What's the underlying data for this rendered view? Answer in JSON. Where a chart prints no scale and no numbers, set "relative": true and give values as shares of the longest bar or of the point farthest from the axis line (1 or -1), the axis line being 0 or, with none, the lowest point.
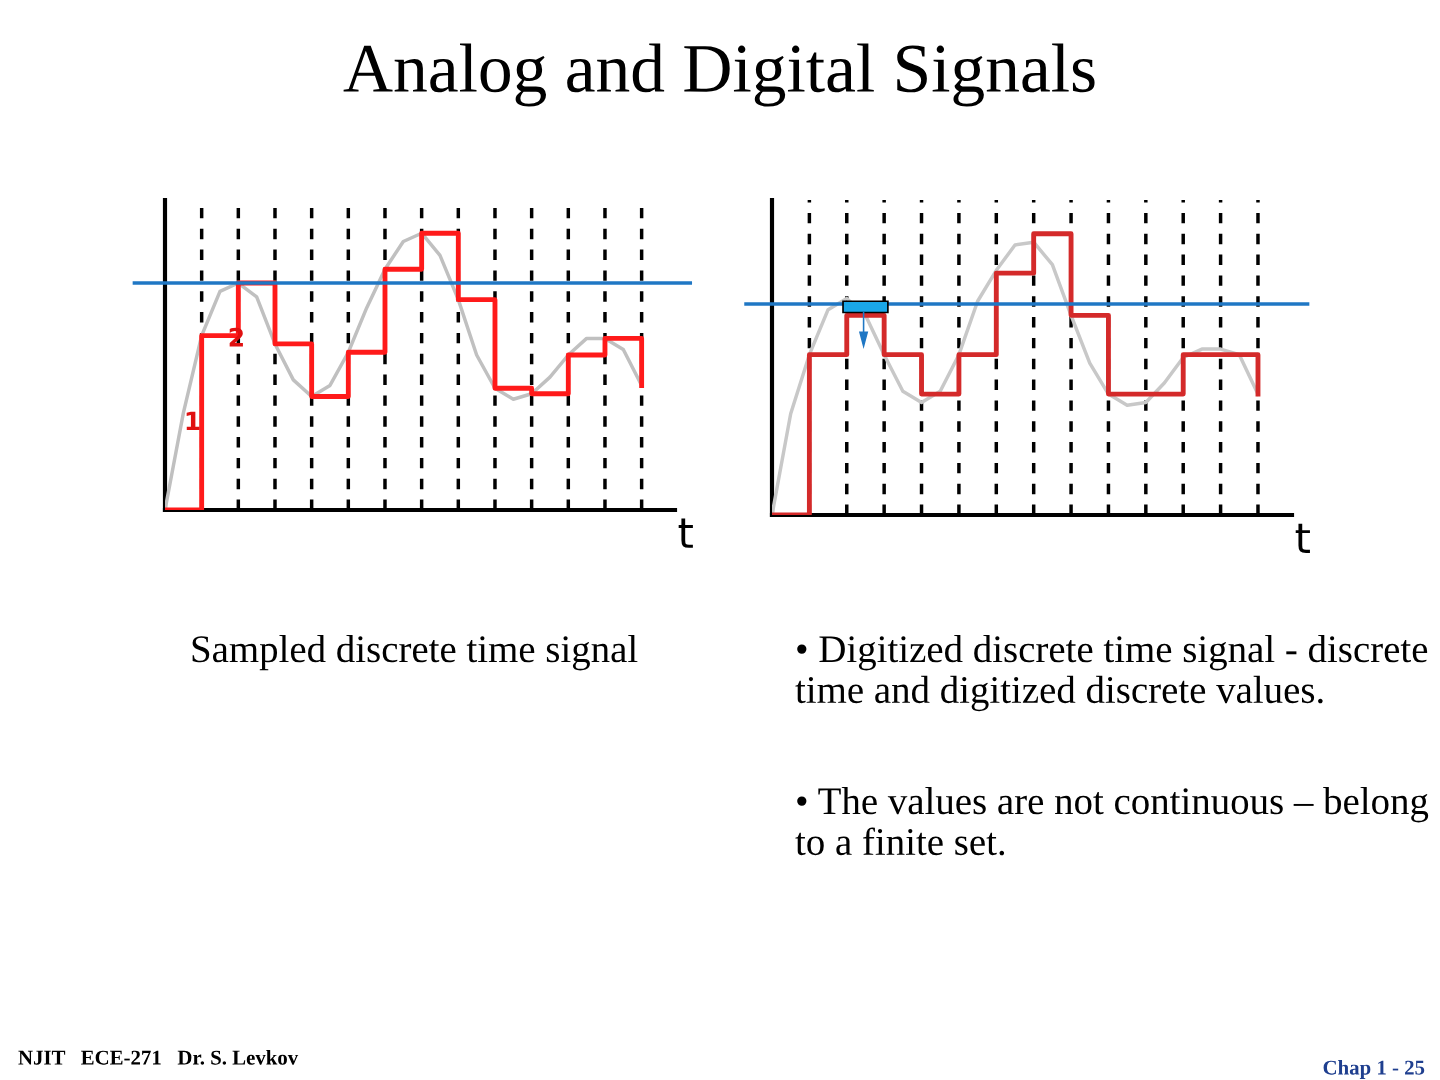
{
  "chart_data": [
    {
      "type": "step",
      "title": "Analog and Digital Signals",
      "relative": true,
      "xlabel": "t",
      "categories": [
        null,
        null,
        null,
        null,
        null,
        null,
        null,
        null,
        null,
        null,
        null,
        null,
        null,
        null,
        null,
        null,
        null,
        null,
        null,
        null,
        null,
        null,
        null,
        null,
        null,
        null,
        null
      ],
      "grid": "x",
      "line_style": "solid",
      "series": [
        {
          "type": "line",
          "color": "#c0c0c0",
          "values": [
            0,
            0.35,
            0.63,
            0.79,
            0.82,
            0.77,
            0.6,
            0.47,
            0.41,
            0.45,
            0.57,
            0.73,
            0.87,
            0.97,
            1,
            0.92,
            0.76,
            0.56,
            0.44,
            0.4,
            0.42,
            0.48,
            0.56,
            0.62,
            0.62,
            0.58,
            0.45
          ]
        },
        {
          "color": "#ff1a1a",
          "values": [
            0,
            0,
            0.63,
            0.63,
            0.82,
            0.82,
            0.6,
            0.6,
            0.41,
            0.41,
            0.57,
            0.57,
            0.87,
            0.87,
            1,
            1,
            0.76,
            0.76,
            0.44,
            0.44,
            0.42,
            0.42,
            0.56,
            0.56,
            0.62,
            0.62,
            0.45
          ]
        }
      ],
      "ref_lines": [
        {
          "axis": "y",
          "value": 0.82,
          "color": "#1f77c4"
        }
      ],
      "annotations": [
        "1",
        "2",
        "Sampled discrete time signal",
        "NJIT   ECE-271   Dr. S. Levkov"
      ]
    },
    {
      "type": "step",
      "relative": true,
      "xlabel": "t",
      "categories": [
        null,
        null,
        null,
        null,
        null,
        null,
        null,
        null,
        null,
        null,
        null,
        null,
        null,
        null,
        null,
        null,
        null,
        null,
        null,
        null,
        null,
        null,
        null,
        null,
        null,
        null,
        null
      ],
      "grid": "x",
      "line_style": "solid",
      "series": [
        {
          "type": "line",
          "color": "#c8c8c8",
          "values": [
            0,
            0.36,
            0.57,
            0.73,
            0.77,
            0.71,
            0.57,
            0.44,
            0.4,
            0.44,
            0.57,
            0.76,
            0.87,
            0.96,
            0.97,
            0.89,
            0.71,
            0.54,
            0.43,
            0.39,
            0.4,
            0.47,
            0.56,
            0.59,
            0.59,
            0.57,
            0.43
          ]
        },
        {
          "color": "#d42a2a",
          "values": [
            0,
            0,
            0.57,
            0.57,
            0.71,
            0.71,
            0.57,
            0.57,
            0.43,
            0.43,
            0.57,
            0.57,
            0.86,
            0.86,
            1,
            1,
            0.71,
            0.71,
            0.43,
            0.43,
            0.43,
            0.43,
            0.57,
            0.57,
            0.57,
            0.57,
            0.43
          ]
        }
      ],
      "ref_lines": [
        {
          "axis": "y",
          "value": 0.75,
          "color": "#1f77c4"
        }
      ],
      "annotations": [
        "• Digitized discrete time signal - discrete time and digitized discrete values.",
        "• The values are not continuous – belong to a finite set.",
        "Chap 1 - 25"
      ]
    }
  ]
}
